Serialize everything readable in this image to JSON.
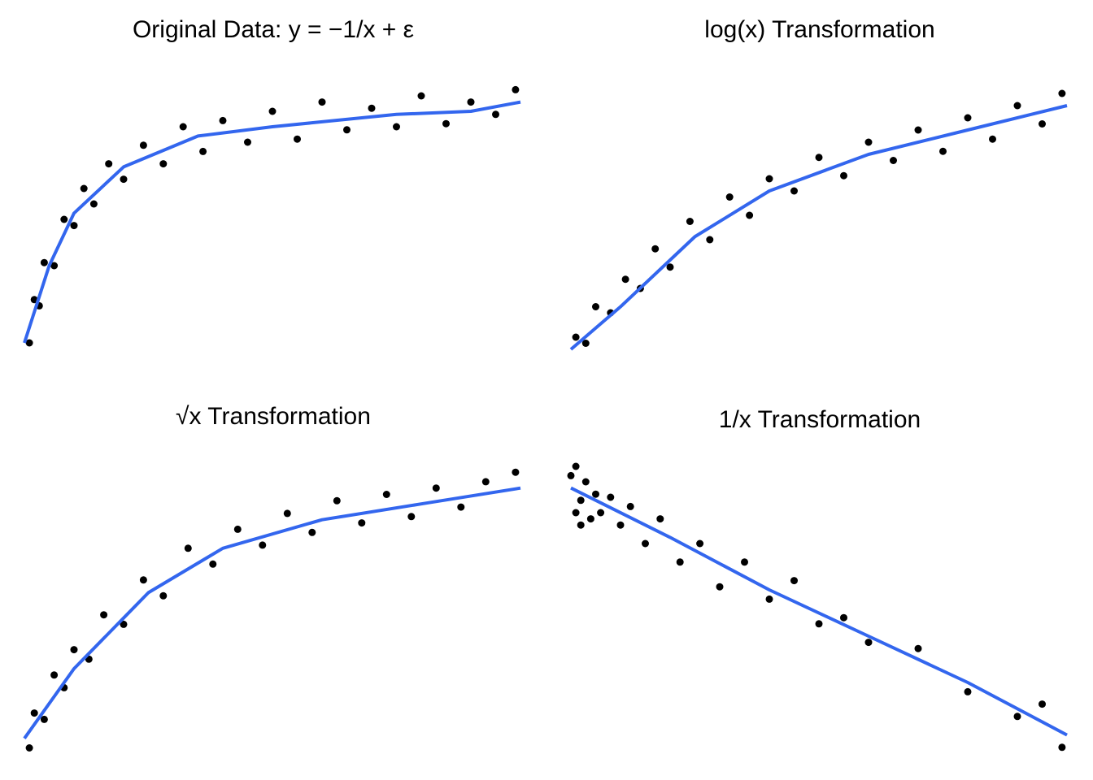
{
  "chart_data": [
    {
      "type": "scatter",
      "title": "Original Data: y = −1/x + ε",
      "color": "#000000",
      "x": [
        1,
        2,
        3,
        4,
        6,
        8,
        10,
        12,
        14,
        17,
        20,
        24,
        28,
        32,
        36,
        40,
        45,
        50,
        55,
        60,
        65,
        70,
        75,
        80,
        85,
        90,
        95,
        99
      ],
      "y": [
        10,
        24,
        22,
        36,
        35,
        50,
        48,
        60,
        55,
        68,
        63,
        74,
        68,
        80,
        72,
        82,
        75,
        85,
        76,
        88,
        79,
        86,
        80,
        90,
        81,
        88,
        84,
        92
      ],
      "smooth": {
        "color": "#3366ee",
        "x": [
          0,
          5,
          10,
          20,
          35,
          50,
          75,
          90,
          100
        ],
        "y": [
          10,
          35,
          52,
          67,
          77,
          80,
          84,
          85,
          88
        ]
      },
      "xlim": [
        0,
        100
      ],
      "ylim": [
        0,
        100
      ]
    },
    {
      "type": "scatter",
      "title": "log(x) Transformation",
      "color": "#000000",
      "x": [
        1,
        3,
        5,
        8,
        11,
        14,
        17,
        20,
        24,
        28,
        32,
        36,
        40,
        45,
        50,
        55,
        60,
        65,
        70,
        75,
        80,
        85,
        90,
        95,
        99
      ],
      "y": [
        12,
        10,
        22,
        20,
        31,
        28,
        41,
        35,
        50,
        44,
        58,
        52,
        64,
        60,
        71,
        65,
        76,
        70,
        80,
        73,
        84,
        77,
        88,
        82,
        92
      ],
      "smooth": {
        "color": "#3366ee",
        "x": [
          0,
          10,
          25,
          40,
          60,
          80,
          100
        ],
        "y": [
          8,
          22,
          45,
          60,
          72,
          80,
          88
        ]
      },
      "xlim": [
        0,
        100
      ],
      "ylim": [
        0,
        100
      ]
    },
    {
      "type": "scatter",
      "title": "√x Transformation",
      "color": "#000000",
      "x": [
        1,
        2,
        4,
        6,
        8,
        10,
        13,
        16,
        20,
        24,
        28,
        33,
        38,
        43,
        48,
        53,
        58,
        63,
        68,
        73,
        78,
        83,
        88,
        93,
        99
      ],
      "y": [
        5,
        16,
        14,
        28,
        24,
        36,
        33,
        47,
        44,
        58,
        53,
        68,
        63,
        74,
        69,
        79,
        73,
        83,
        76,
        85,
        78,
        87,
        81,
        89,
        92
      ],
      "smooth": {
        "color": "#3366ee",
        "x": [
          0,
          10,
          25,
          40,
          60,
          80,
          100
        ],
        "y": [
          8,
          30,
          54,
          68,
          77,
          82,
          87
        ]
      },
      "xlim": [
        0,
        100
      ],
      "ylim": [
        0,
        100
      ]
    },
    {
      "type": "scatter",
      "title": "1/x Transformation",
      "color": "#000000",
      "x": [
        0,
        1,
        1,
        2,
        2,
        3,
        4,
        5,
        6,
        8,
        10,
        12,
        15,
        18,
        22,
        26,
        30,
        35,
        40,
        45,
        50,
        55,
        60,
        70,
        80,
        90,
        95,
        99
      ],
      "y": [
        92,
        80,
        95,
        84,
        76,
        90,
        78,
        86,
        80,
        85,
        76,
        82,
        70,
        78,
        64,
        70,
        56,
        64,
        52,
        58,
        44,
        46,
        38,
        36,
        22,
        14,
        18,
        4
      ],
      "smooth": {
        "color": "#3366ee",
        "x": [
          0,
          20,
          40,
          60,
          80,
          100
        ],
        "y": [
          88,
          72,
          55,
          40,
          25,
          8
        ]
      },
      "xlim": [
        0,
        100
      ],
      "ylim": [
        0,
        100
      ]
    }
  ]
}
